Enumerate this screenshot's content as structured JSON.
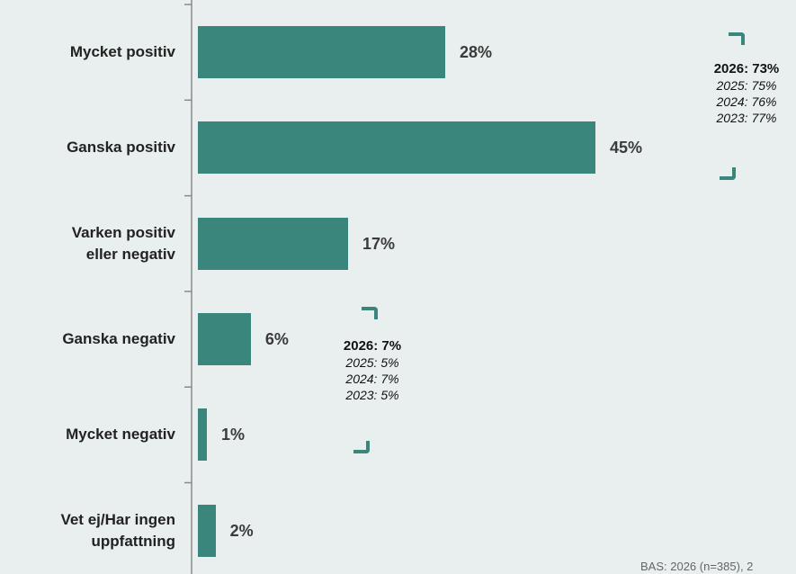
{
  "chart_data": {
    "type": "bar",
    "orientation": "horizontal",
    "categories": [
      "Mycket positiv",
      "Ganska positiv",
      "Varken positiv\neller negativ",
      "Ganska negativ",
      "Mycket negativ",
      "Vet ej/Har ingen\nuppfattning"
    ],
    "values": [
      28,
      45,
      17,
      6,
      1,
      2
    ],
    "value_labels": [
      "28%",
      "45%",
      "17%",
      "6%",
      "1%",
      "2%"
    ],
    "xlim": [
      0,
      100
    ],
    "bar_color": "#3a867c",
    "annotations": [
      {
        "main": "2026: 73%",
        "previous": [
          "2025: 75%",
          "2024: 76%",
          "2023: 77%"
        ]
      },
      {
        "main": "2026: 7%",
        "previous": [
          "2025: 5%",
          "2024: 7%",
          "2023: 5%"
        ]
      }
    ]
  },
  "footnote": "BAS: 2026 (n=385), 2"
}
